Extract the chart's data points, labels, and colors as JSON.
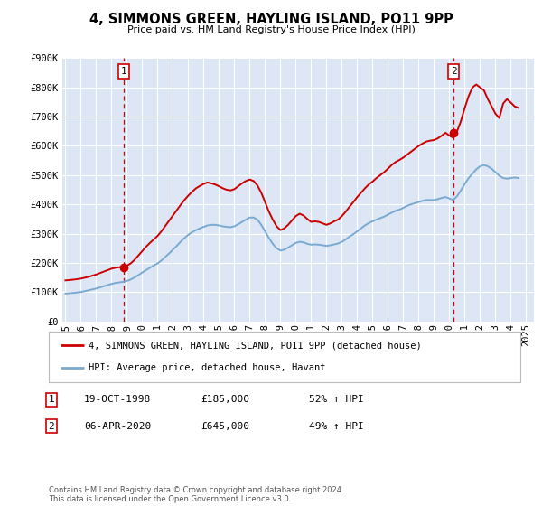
{
  "title": "4, SIMMONS GREEN, HAYLING ISLAND, PO11 9PP",
  "subtitle": "Price paid vs. HM Land Registry's House Price Index (HPI)",
  "ylim": [
    0,
    900000
  ],
  "xlim_start": 1994.8,
  "xlim_end": 2025.5,
  "yticks": [
    0,
    100000,
    200000,
    300000,
    400000,
    500000,
    600000,
    700000,
    800000,
    900000
  ],
  "ytick_labels": [
    "£0",
    "£100K",
    "£200K",
    "£300K",
    "£400K",
    "£500K",
    "£600K",
    "£700K",
    "£800K",
    "£900K"
  ],
  "xticks": [
    1995,
    1996,
    1997,
    1998,
    1999,
    2000,
    2001,
    2002,
    2003,
    2004,
    2005,
    2006,
    2007,
    2008,
    2009,
    2010,
    2011,
    2012,
    2013,
    2014,
    2015,
    2016,
    2017,
    2018,
    2019,
    2020,
    2021,
    2022,
    2023,
    2024,
    2025
  ],
  "bg_color": "#dce6f5",
  "grid_color": "#ffffff",
  "red_line_color": "#cc0000",
  "blue_line_color": "#7aaad0",
  "marker_color": "#cc0000",
  "vline_color": "#cc0000",
  "transaction1_x": 1998.8,
  "transaction1_y": 185000,
  "transaction1_label": "1",
  "transaction1_date": "19-OCT-1998",
  "transaction1_price": "£185,000",
  "transaction1_hpi": "52% ↑ HPI",
  "transaction2_x": 2020.27,
  "transaction2_y": 645000,
  "transaction2_label": "2",
  "transaction2_date": "06-APR-2020",
  "transaction2_price": "£645,000",
  "transaction2_hpi": "49% ↑ HPI",
  "legend_line1": "4, SIMMONS GREEN, HAYLING ISLAND, PO11 9PP (detached house)",
  "legend_line2": "HPI: Average price, detached house, Havant",
  "footnote": "Contains HM Land Registry data © Crown copyright and database right 2024.\nThis data is licensed under the Open Government Licence v3.0.",
  "hpi_x": [
    1995.0,
    1995.25,
    1995.5,
    1995.75,
    1996.0,
    1996.25,
    1996.5,
    1996.75,
    1997.0,
    1997.25,
    1997.5,
    1997.75,
    1998.0,
    1998.25,
    1998.5,
    1998.75,
    1999.0,
    1999.25,
    1999.5,
    1999.75,
    2000.0,
    2000.25,
    2000.5,
    2000.75,
    2001.0,
    2001.25,
    2001.5,
    2001.75,
    2002.0,
    2002.25,
    2002.5,
    2002.75,
    2003.0,
    2003.25,
    2003.5,
    2003.75,
    2004.0,
    2004.25,
    2004.5,
    2004.75,
    2005.0,
    2005.25,
    2005.5,
    2005.75,
    2006.0,
    2006.25,
    2006.5,
    2006.75,
    2007.0,
    2007.25,
    2007.5,
    2007.75,
    2008.0,
    2008.25,
    2008.5,
    2008.75,
    2009.0,
    2009.25,
    2009.5,
    2009.75,
    2010.0,
    2010.25,
    2010.5,
    2010.75,
    2011.0,
    2011.25,
    2011.5,
    2011.75,
    2012.0,
    2012.25,
    2012.5,
    2012.75,
    2013.0,
    2013.25,
    2013.5,
    2013.75,
    2014.0,
    2014.25,
    2014.5,
    2014.75,
    2015.0,
    2015.25,
    2015.5,
    2015.75,
    2016.0,
    2016.25,
    2016.5,
    2016.75,
    2017.0,
    2017.25,
    2017.5,
    2017.75,
    2018.0,
    2018.25,
    2018.5,
    2018.75,
    2019.0,
    2019.25,
    2019.5,
    2019.75,
    2020.0,
    2020.25,
    2020.5,
    2020.75,
    2021.0,
    2021.25,
    2021.5,
    2021.75,
    2022.0,
    2022.25,
    2022.5,
    2022.75,
    2023.0,
    2023.25,
    2023.5,
    2023.75,
    2024.0,
    2024.25,
    2024.5
  ],
  "hpi_y": [
    95000,
    96000,
    97000,
    98500,
    100000,
    103000,
    106000,
    109000,
    112000,
    116000,
    120000,
    124000,
    128000,
    131000,
    133000,
    135000,
    138000,
    143000,
    150000,
    158000,
    167000,
    175000,
    183000,
    191000,
    198000,
    208000,
    220000,
    232000,
    245000,
    258000,
    272000,
    285000,
    296000,
    305000,
    312000,
    318000,
    323000,
    328000,
    330000,
    330000,
    328000,
    325000,
    323000,
    322000,
    325000,
    332000,
    340000,
    348000,
    355000,
    355000,
    348000,
    330000,
    308000,
    285000,
    265000,
    250000,
    242000,
    245000,
    252000,
    260000,
    268000,
    272000,
    270000,
    265000,
    262000,
    263000,
    262000,
    260000,
    258000,
    260000,
    263000,
    266000,
    272000,
    280000,
    290000,
    298000,
    308000,
    318000,
    328000,
    336000,
    342000,
    348000,
    353000,
    358000,
    365000,
    372000,
    378000,
    382000,
    388000,
    395000,
    400000,
    404000,
    408000,
    412000,
    415000,
    415000,
    415000,
    418000,
    422000,
    425000,
    420000,
    415000,
    428000,
    448000,
    470000,
    490000,
    505000,
    520000,
    530000,
    535000,
    530000,
    522000,
    510000,
    498000,
    490000,
    488000,
    490000,
    492000,
    490000
  ],
  "red_x": [
    1995.0,
    1995.25,
    1995.5,
    1995.75,
    1996.0,
    1996.25,
    1996.5,
    1996.75,
    1997.0,
    1997.25,
    1997.5,
    1997.75,
    1998.0,
    1998.25,
    1998.5,
    1998.75,
    1999.0,
    1999.25,
    1999.5,
    1999.75,
    2000.0,
    2000.25,
    2000.5,
    2000.75,
    2001.0,
    2001.25,
    2001.5,
    2001.75,
    2002.0,
    2002.25,
    2002.5,
    2002.75,
    2003.0,
    2003.25,
    2003.5,
    2003.75,
    2004.0,
    2004.25,
    2004.5,
    2004.75,
    2005.0,
    2005.25,
    2005.5,
    2005.75,
    2006.0,
    2006.25,
    2006.5,
    2006.75,
    2007.0,
    2007.25,
    2007.5,
    2007.75,
    2008.0,
    2008.25,
    2008.5,
    2008.75,
    2009.0,
    2009.25,
    2009.5,
    2009.75,
    2010.0,
    2010.25,
    2010.5,
    2010.75,
    2011.0,
    2011.25,
    2011.5,
    2011.75,
    2012.0,
    2012.25,
    2012.5,
    2012.75,
    2013.0,
    2013.25,
    2013.5,
    2013.75,
    2014.0,
    2014.25,
    2014.5,
    2014.75,
    2015.0,
    2015.25,
    2015.5,
    2015.75,
    2016.0,
    2016.25,
    2016.5,
    2016.75,
    2017.0,
    2017.25,
    2017.5,
    2017.75,
    2018.0,
    2018.25,
    2018.5,
    2018.75,
    2019.0,
    2019.25,
    2019.5,
    2019.75,
    2020.0,
    2020.25,
    2020.5,
    2020.75,
    2021.0,
    2021.25,
    2021.5,
    2021.75,
    2022.0,
    2022.25,
    2022.5,
    2022.75,
    2023.0,
    2023.25,
    2023.5,
    2023.75,
    2024.0,
    2024.25,
    2024.5
  ],
  "red_y": [
    140000,
    141000,
    142500,
    144000,
    146000,
    149000,
    152000,
    156000,
    160000,
    165000,
    170000,
    175000,
    180000,
    183000,
    185000,
    186000,
    190000,
    198000,
    210000,
    225000,
    240000,
    255000,
    268000,
    280000,
    292000,
    308000,
    326000,
    344000,
    362000,
    380000,
    398000,
    415000,
    430000,
    443000,
    455000,
    463000,
    470000,
    475000,
    472000,
    468000,
    462000,
    455000,
    450000,
    448000,
    452000,
    462000,
    472000,
    480000,
    485000,
    480000,
    465000,
    440000,
    408000,
    375000,
    348000,
    325000,
    312000,
    318000,
    330000,
    345000,
    360000,
    368000,
    362000,
    350000,
    340000,
    342000,
    340000,
    335000,
    330000,
    335000,
    342000,
    348000,
    360000,
    375000,
    392000,
    408000,
    425000,
    440000,
    455000,
    468000,
    478000,
    490000,
    500000,
    510000,
    522000,
    535000,
    545000,
    552000,
    560000,
    570000,
    580000,
    590000,
    600000,
    608000,
    615000,
    618000,
    620000,
    626000,
    635000,
    645000,
    635000,
    628000,
    650000,
    685000,
    730000,
    770000,
    800000,
    810000,
    800000,
    790000,
    760000,
    735000,
    710000,
    695000,
    745000,
    760000,
    748000,
    735000,
    730000
  ]
}
